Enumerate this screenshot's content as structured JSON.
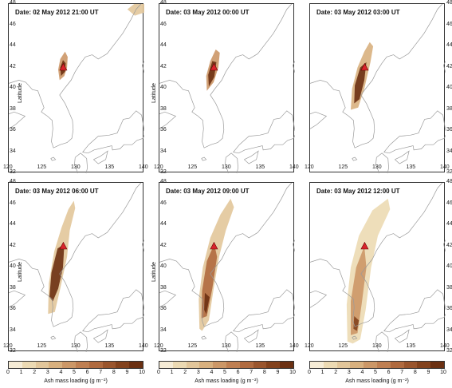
{
  "panels": [
    {
      "date": "Date: 02 May 2012 21:00 UT",
      "stage": 0
    },
    {
      "date": "Date: 03 May 2012 00:00 UT",
      "stage": 1
    },
    {
      "date": "Date: 03 May 2012 03:00 UT",
      "stage": 2
    },
    {
      "date": "Date: 03 May 2012 06:00 UT",
      "stage": 3
    },
    {
      "date": "Date: 03 May 2012 09:00 UT",
      "stage": 4
    },
    {
      "date": "Date: 03 May 2012 12:00 UT",
      "stage": 5
    }
  ],
  "axes": {
    "ylabel": "Latitude",
    "lat_ticks": [
      "48",
      "46",
      "44",
      "42",
      "40",
      "38",
      "36",
      "34",
      "32"
    ],
    "lon_ticks": [
      "120",
      "125",
      "130",
      "135",
      "140"
    ]
  },
  "colorbar": {
    "title": "Ash mass loading (g m⁻²)",
    "ticks": [
      "0",
      "1",
      "2",
      "3",
      "4",
      "5",
      "6",
      "7",
      "8",
      "9",
      "10"
    ],
    "colors": [
      "#f6ecd6",
      "#ecdab3",
      "#e2c69a",
      "#d8b07e",
      "#cc9767",
      "#bf7f52",
      "#b06a3f",
      "#9a552d",
      "#83421d",
      "#6b3012"
    ]
  },
  "colors": {
    "coast": "#9a9a9a",
    "volcano": "#d8242b"
  }
}
